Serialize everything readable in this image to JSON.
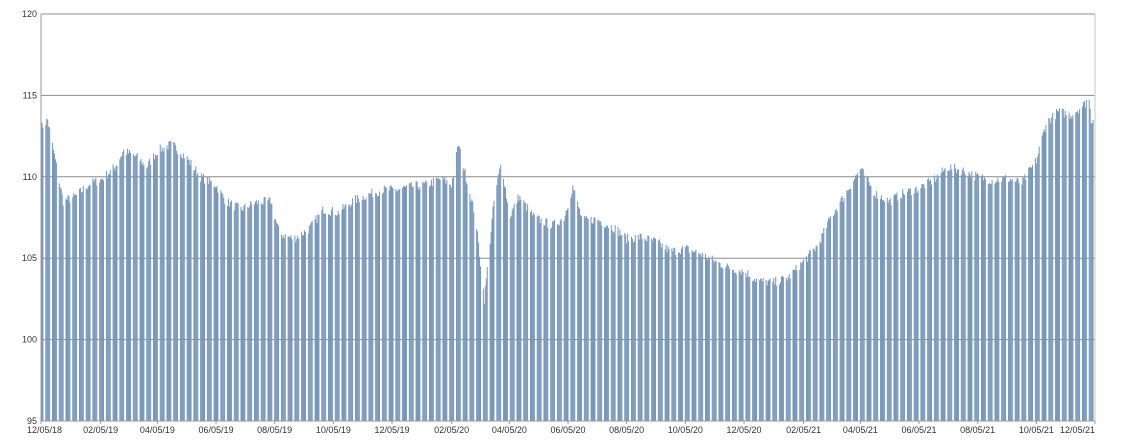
{
  "colors": {
    "bar": "#7796b8",
    "bar_edge": "#5f7fa3",
    "grid": "#8c8c8c",
    "axis": "#9a9a9a",
    "background": "#ffffff"
  },
  "chart_data": {
    "type": "bar",
    "title": "",
    "xlabel": "",
    "ylabel": "",
    "ylim": [
      95,
      120
    ],
    "yticks": [
      95,
      100,
      105,
      110,
      115,
      120
    ],
    "grid": true,
    "legend": "none",
    "x_range": [
      "2018-12-05",
      "2021-12-05"
    ],
    "xtick_labels": [
      "12/05/18",
      "02/05/19",
      "04/05/19",
      "06/05/19",
      "08/05/19",
      "10/05/19",
      "12/05/19",
      "02/05/20",
      "04/05/20",
      "06/05/20",
      "08/05/20",
      "10/05/20",
      "12/05/20",
      "02/05/21",
      "04/05/21",
      "06/05/21",
      "08/05/21",
      "10/05/21",
      "12/05/21"
    ],
    "trend_points": [
      [
        "2018-12-05",
        113.0
      ],
      [
        "2018-12-12",
        113.5
      ],
      [
        "2018-12-20",
        111.0
      ],
      [
        "2018-12-28",
        108.5
      ],
      [
        "2019-01-10",
        108.8
      ],
      [
        "2019-01-25",
        109.6
      ],
      [
        "2019-02-05",
        109.8
      ],
      [
        "2019-02-20",
        110.6
      ],
      [
        "2019-03-01",
        111.6
      ],
      [
        "2019-03-15",
        111.2
      ],
      [
        "2019-03-25",
        110.6
      ],
      [
        "2019-04-05",
        111.6
      ],
      [
        "2019-04-20",
        112.0
      ],
      [
        "2019-05-05",
        111.2
      ],
      [
        "2019-05-20",
        110.0
      ],
      [
        "2019-06-05",
        109.5
      ],
      [
        "2019-06-15",
        108.5
      ],
      [
        "2019-07-01",
        108.0
      ],
      [
        "2019-07-15",
        108.4
      ],
      [
        "2019-08-01",
        108.5
      ],
      [
        "2019-08-10",
        106.5
      ],
      [
        "2019-08-25",
        106.2
      ],
      [
        "2019-09-10",
        106.8
      ],
      [
        "2019-09-25",
        108.0
      ],
      [
        "2019-10-10",
        107.8
      ],
      [
        "2019-10-25",
        108.5
      ],
      [
        "2019-11-10",
        108.9
      ],
      [
        "2019-11-25",
        109.2
      ],
      [
        "2019-12-10",
        109.2
      ],
      [
        "2019-12-25",
        109.4
      ],
      [
        "2020-01-10",
        109.5
      ],
      [
        "2020-01-25",
        109.9
      ],
      [
        "2020-02-05",
        109.5
      ],
      [
        "2020-02-12",
        112.0
      ],
      [
        "2020-02-20",
        110.0
      ],
      [
        "2020-03-01",
        107.5
      ],
      [
        "2020-03-10",
        102.5
      ],
      [
        "2020-03-20",
        108.5
      ],
      [
        "2020-03-28",
        111.0
      ],
      [
        "2020-04-05",
        107.5
      ],
      [
        "2020-04-15",
        108.8
      ],
      [
        "2020-05-01",
        107.5
      ],
      [
        "2020-05-20",
        107.0
      ],
      [
        "2020-06-01",
        107.5
      ],
      [
        "2020-06-10",
        109.4
      ],
      [
        "2020-06-20",
        107.3
      ],
      [
        "2020-07-05",
        107.4
      ],
      [
        "2020-07-25",
        106.8
      ],
      [
        "2020-08-05",
        106.2
      ],
      [
        "2020-08-20",
        106.3
      ],
      [
        "2020-09-05",
        106.0
      ],
      [
        "2020-09-20",
        105.4
      ],
      [
        "2020-10-05",
        105.6
      ],
      [
        "2020-10-20",
        105.3
      ],
      [
        "2020-11-05",
        104.8
      ],
      [
        "2020-11-20",
        104.4
      ],
      [
        "2020-12-05",
        104.2
      ],
      [
        "2020-12-20",
        103.6
      ],
      [
        "2021-01-05",
        103.5
      ],
      [
        "2021-01-20",
        103.8
      ],
      [
        "2021-02-05",
        104.8
      ],
      [
        "2021-02-20",
        105.8
      ],
      [
        "2021-03-05",
        107.5
      ],
      [
        "2021-03-20",
        108.9
      ],
      [
        "2021-04-05",
        110.5
      ],
      [
        "2021-04-20",
        109.0
      ],
      [
        "2021-05-05",
        108.5
      ],
      [
        "2021-05-20",
        109.0
      ],
      [
        "2021-06-05",
        109.3
      ],
      [
        "2021-06-20",
        109.8
      ],
      [
        "2021-07-05",
        110.6
      ],
      [
        "2021-07-20",
        110.4
      ],
      [
        "2021-08-05",
        110.0
      ],
      [
        "2021-08-20",
        109.8
      ],
      [
        "2021-09-05",
        109.9
      ],
      [
        "2021-09-20",
        109.6
      ],
      [
        "2021-10-05",
        111.0
      ],
      [
        "2021-10-15",
        113.3
      ],
      [
        "2021-10-28",
        114.0
      ],
      [
        "2021-11-10",
        113.8
      ],
      [
        "2021-11-25",
        114.5
      ],
      [
        "2021-11-28",
        115.3
      ],
      [
        "2021-12-01",
        113.5
      ],
      [
        "2021-12-05",
        113.6
      ]
    ]
  }
}
